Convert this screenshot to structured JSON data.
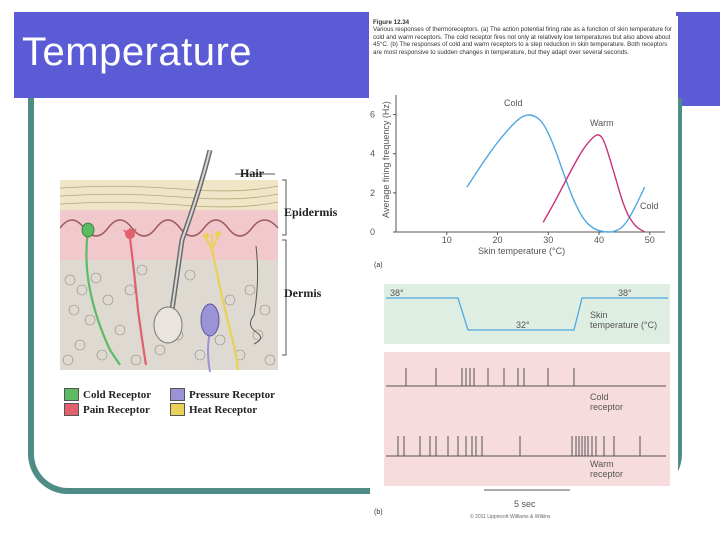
{
  "slide": {
    "title": "Temperature"
  },
  "skin_diagram": {
    "labels": {
      "hair": "Hair",
      "epidermis": "Epidermis",
      "dermis": "Dermis"
    },
    "legend": [
      {
        "label": "Cold Receptor",
        "color": "#5DBB63"
      },
      {
        "label": "Pressure Receptor",
        "color": "#9A94D6"
      },
      {
        "label": "Pain Receptor",
        "color": "#E0606E"
      },
      {
        "label": "Heat Receptor",
        "color": "#E8D25A"
      }
    ]
  },
  "figure": {
    "number": "Figure 12.34",
    "caption": "Various responses of thermoreceptors. (a) The action potential firing rate as a function of skin temperature for cold and warm receptors. The cold receptor fires not only at relatively low temperatures but also above about 45°C. (b) The responses of cold and warm receptors to a step reduction in skin temperature. Both receptors are most responsive to sudden changes in temperature, but they adapt over several seconds.",
    "panel_a_label": "(a)",
    "panel_b_label": "(b)",
    "copyright": "© 2011 Lippincott Williams & Wilkins",
    "panel_b": {
      "temp_high_left": "38°",
      "temp_high_right": "38°",
      "temp_low": "32°",
      "trace_label": "Skin\ntemperature (°C)",
      "cold_label": "Cold\nreceptor",
      "warm_label": "Warm\nreceptor",
      "time_scale": "5 sec"
    }
  },
  "chart_data": {
    "type": "line",
    "title": "",
    "xlabel": "Skin temperature (°C)",
    "ylabel": "Average firing frequency (Hz)",
    "xlim": [
      0,
      53
    ],
    "ylim": [
      0,
      7
    ],
    "xticks": [
      10,
      20,
      30,
      40,
      50
    ],
    "yticks": [
      0,
      2,
      4,
      6
    ],
    "series": [
      {
        "name": "Cold",
        "color": "#4FA8E0",
        "x": [
          14,
          17,
          20,
          23,
          25,
          27,
          29,
          31,
          33,
          35,
          37,
          39,
          41,
          43,
          45,
          47,
          49
        ],
        "y": [
          2.3,
          3.5,
          4.6,
          5.5,
          5.95,
          6.0,
          5.6,
          4.5,
          3.0,
          1.6,
          0.6,
          0.15,
          0.0,
          0.0,
          0.3,
          1.2,
          2.3
        ]
      },
      {
        "name": "Warm",
        "color": "#C8327A",
        "x": [
          29,
          31,
          33,
          35,
          37,
          39,
          40,
          41,
          43,
          45,
          47,
          49
        ],
        "y": [
          0.5,
          1.4,
          2.4,
          3.4,
          4.3,
          4.9,
          5.0,
          4.7,
          3.0,
          1.2,
          0.3,
          0.0
        ]
      }
    ],
    "series_labels": {
      "cold_peak": "Cold",
      "warm_peak": "Warm",
      "cold_tail": "Cold"
    }
  }
}
